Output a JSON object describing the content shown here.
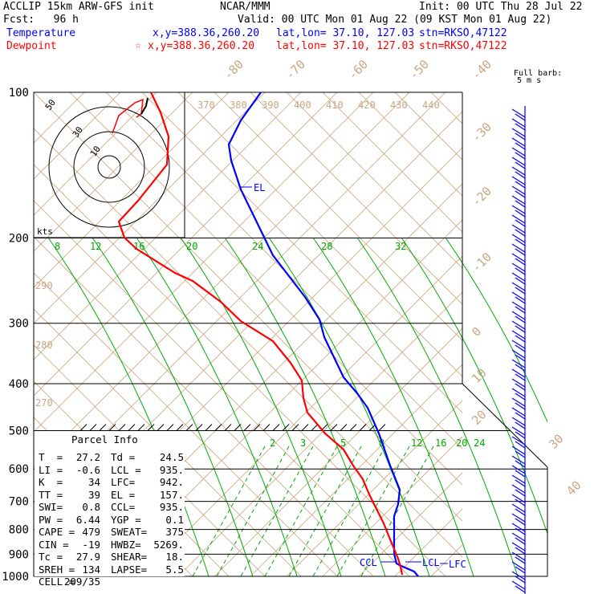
{
  "header": {
    "model": "ACCLIP 15km ARW-GFS init",
    "fcst": "Fcst:   96 h",
    "center": "NCAR/MMM",
    "init": "Init: 00 UTC Thu 28 Jul 22",
    "valid": "Valid: 00 UTC Mon 01 Aug 22 (09 KST Mon 01 Aug 22)",
    "temp_label": "Temperature",
    "temp_xy": "x,y=388.36,260.20",
    "temp_latlon": "lat,lon= 37.10, 127.03",
    "temp_stn": "stn=RKSO,47122",
    "dew_label": "Dewpoint",
    "dew_xy": "x,y=388.36,260.20",
    "dew_latlon": "lat,lon= 37.10, 127.03",
    "dew_stn": "stn=RKSO,47122",
    "dew_marker": "☆",
    "barb_title": "Full barb:",
    "barb_unit": "5 m s"
  },
  "colors": {
    "temperature": "#0000ff",
    "dewpoint": "#ff0000",
    "moist_adiabat": "#00aa00",
    "dry_adiabat": "#c8a882",
    "isobar": "#000000"
  },
  "chart_data": {
    "type": "line",
    "title": "ACCLIP 15km ARW-GFS init",
    "y_axis": "pressure (hPa), log scale",
    "pressure_ticks": [
      "100",
      "200",
      "300",
      "400",
      "500",
      "600",
      "700",
      "800",
      "900",
      "1000"
    ],
    "temperature_labels": [
      "-80",
      "-70",
      "-60",
      "-50",
      "-40",
      "-30",
      "-20",
      "-10",
      "0",
      "10",
      "20",
      "30",
      "40"
    ],
    "theta_labels": [
      "370",
      "380",
      "390",
      "400",
      "410",
      "420",
      "430",
      "440"
    ],
    "theta_left_labels": [
      "290",
      "280",
      "270"
    ],
    "mixing_ratio_upper": [
      "8",
      "12",
      "16",
      "20",
      "24",
      "28",
      "32"
    ],
    "mixing_ratio_lower": [
      "2",
      "3",
      "5",
      "8",
      "12",
      "16",
      "20",
      "24"
    ],
    "series": [
      {
        "name": "Temperature",
        "pressure": [
          1000,
          975,
          950,
          925,
          900,
          850,
          800,
          750,
          700,
          650,
          600,
          550,
          500,
          450,
          400,
          350,
          300,
          250,
          200,
          175,
          150,
          125,
          100
        ],
        "values": [
          27.2,
          26.0,
          23.5,
          22.0,
          20.5,
          17.0,
          14.0,
          12.0,
          8.5,
          4.0,
          -0.5,
          -4.5,
          -7.5,
          -12.5,
          -19.0,
          -26.0,
          -33.5,
          -42.5,
          -53.0,
          -60.0,
          -69.0,
          -70.0,
          -74.0
        ]
      },
      {
        "name": "Dewpoint",
        "pressure": [
          1000,
          975,
          950,
          925,
          900,
          850,
          800,
          750,
          700,
          650,
          600,
          550,
          500,
          450,
          400,
          350,
          300,
          250,
          200,
          175,
          150,
          125,
          100
        ],
        "values": [
          24.5,
          24.0,
          22.5,
          21.0,
          19.0,
          14.5,
          10.0,
          5.5,
          1.5,
          -3.0,
          -8.0,
          -13.0,
          -19.0,
          -28.0,
          -30.0,
          -36.0,
          -46.0,
          -58.0,
          -71.0,
          -74.0,
          -79.0,
          -82.0,
          -85.0
        ]
      }
    ],
    "levels": {
      "EL": 157,
      "CCL": 935,
      "LCL": 935,
      "LFC": 942
    },
    "hodograph": {
      "rings": [
        "10",
        "30",
        "50"
      ],
      "unit": "kts"
    },
    "wind_barbs": {
      "note": "right column"
    }
  },
  "parcel": {
    "title": "Parcel Info",
    "rows": [
      [
        "T  =",
        "27.2",
        "Td =",
        "24.5"
      ],
      [
        "LI =",
        "-0.6",
        "LCL =",
        "935."
      ],
      [
        "K  =",
        "34",
        "LFC=",
        "942."
      ],
      [
        "TT =",
        "39",
        "EL =",
        "157."
      ],
      [
        "SWI=",
        "0.8",
        "CCL=",
        "935."
      ],
      [
        "PW =",
        "6.44",
        "YGP =",
        "0.1"
      ],
      [
        "CAPE =",
        "479",
        "SWEAT=",
        "375"
      ],
      [
        "CIN =",
        "-19",
        "HWBZ=",
        "5269."
      ],
      [
        "Tc =",
        "27.9",
        "SHEAR=",
        "18."
      ],
      [
        "SREH =",
        "134",
        "LAPSE=",
        "5.5"
      ],
      [
        "CELL =",
        "209/35",
        "",
        ""
      ]
    ]
  }
}
